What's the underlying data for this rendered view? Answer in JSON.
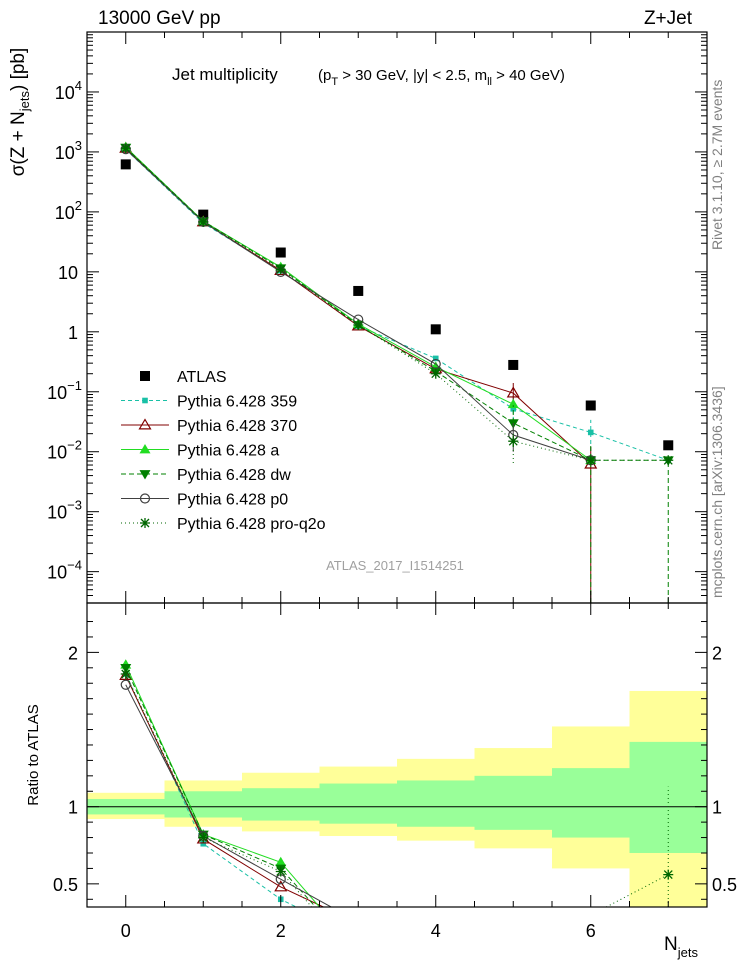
{
  "header": {
    "left": "13000 GeV pp",
    "right": "Z+Jet"
  },
  "side_labels": {
    "top": "Rivet 3.1.10, ≥ 2.7M events",
    "bottom": "mcplots.cern.ch [arXiv:1306.3436]"
  },
  "watermark": "ATLAS_2017_I1514251",
  "plot_title": {
    "main": "Jet multiplicity",
    "cuts_p": "(p",
    "cuts_T": "T",
    "cuts_mid": " > 30 GeV, |y| < 2.5, m",
    "cuts_ll": "ll",
    "cuts_end": " > 40 GeV)"
  },
  "colors": {
    "band_inner": "#99ff99",
    "band_outer": "#ffff99",
    "data": "#000000"
  },
  "chart_data": [
    {
      "type": "scatter",
      "panel": "main",
      "ylabel": {
        "main": "σ(Z + N",
        "sub": "jets",
        "end": ") [pb]"
      },
      "yscale": "log",
      "ylim": [
        3e-05,
        100000
      ],
      "xlim": [
        -0.5,
        7.5
      ],
      "x_ticks": [
        "0",
        "2",
        "4",
        "6"
      ],
      "y_ticks": [
        {
          "v": 0.0001,
          "base": "10",
          "exp": "−4"
        },
        {
          "v": 0.001,
          "base": "10",
          "exp": "−3"
        },
        {
          "v": 0.01,
          "base": "10",
          "exp": "−2"
        },
        {
          "v": 0.1,
          "base": "10",
          "exp": "−1"
        },
        {
          "v": 1,
          "base": "1",
          "exp": ""
        },
        {
          "v": 10,
          "base": "10",
          "exp": ""
        },
        {
          "v": 100,
          "base": "10",
          "exp": "2"
        },
        {
          "v": 1000,
          "base": "10",
          "exp": "3"
        },
        {
          "v": 10000,
          "base": "10",
          "exp": "4"
        }
      ],
      "legend_position": "lower-left",
      "series": [
        {
          "name": "ATLAS",
          "color": "#000000",
          "marker": "square",
          "dash": "none",
          "x": [
            0,
            1,
            2,
            3,
            4,
            5,
            6,
            7
          ],
          "y": [
            620,
            90,
            21,
            4.8,
            1.1,
            0.28,
            0.059,
            0.0128
          ]
        },
        {
          "name": "Pythia 6.428 359",
          "color": "#19c0a6",
          "marker": "smallsquare",
          "dash": "4,3",
          "x": [
            0,
            1,
            2,
            3,
            4,
            5,
            6,
            7
          ],
          "y": [
            1100,
            65,
            10.5,
            1.25,
            0.36,
            0.052,
            0.021,
            0.0072
          ],
          "err": [
            null,
            null,
            null,
            null,
            null,
            [
              0.025,
              0.09
            ],
            [
              0.006,
              0.034
            ],
            null
          ]
        },
        {
          "name": "Pythia 6.428 370",
          "color": "#800000",
          "marker": "triangle",
          "dash": "none",
          "x": [
            0,
            1,
            2,
            3,
            4,
            5,
            6
          ],
          "y": [
            1150,
            68,
            10.5,
            1.25,
            0.24,
            0.095,
            0.0062
          ],
          "err": [
            null,
            null,
            null,
            null,
            null,
            [
              0.06,
              0.14
            ],
            [
              3e-05,
              0.012
            ]
          ]
        },
        {
          "name": "Pythia 6.428 a",
          "color": "#22dd22",
          "marker": "triangle-filled",
          "dash": "none",
          "x": [
            0,
            1,
            2,
            3,
            4,
            5,
            6
          ],
          "y": [
            1200,
            70,
            12,
            1.35,
            0.26,
            0.062,
            0.0072
          ]
        },
        {
          "name": "Pythia 6.428 dw",
          "color": "#008000",
          "marker": "triangle-down",
          "dash": "5,3",
          "x": [
            0,
            1,
            2,
            3,
            4,
            5,
            6,
            7
          ],
          "y": [
            1180,
            70,
            11.5,
            1.3,
            0.22,
            0.03,
            0.0072,
            0.0072
          ],
          "err": [
            null,
            null,
            null,
            null,
            null,
            [
              0.012,
              0.06
            ],
            [
              3e-05,
              0.014
            ],
            [
              3e-05,
              0.0072
            ]
          ]
        },
        {
          "name": "Pythia 6.428 p0",
          "color": "#404040",
          "marker": "circle",
          "dash": "none",
          "x": [
            0,
            1,
            2,
            3,
            4,
            5,
            6
          ],
          "y": [
            1110,
            68,
            10,
            1.6,
            0.29,
            0.019,
            0.0072
          ],
          "err": [
            null,
            null,
            null,
            null,
            null,
            [
              0.01,
              0.03
            ],
            null
          ]
        },
        {
          "name": "Pythia 6.428 pro-q2o",
          "color": "#006600",
          "marker": "star",
          "dash": "1,3",
          "x": [
            0,
            1,
            2,
            3,
            4,
            5,
            6,
            7
          ],
          "y": [
            1150,
            68,
            11,
            1.3,
            0.2,
            0.015,
            0.0072,
            0.0072
          ],
          "err": [
            null,
            null,
            null,
            null,
            null,
            [
              0.0065,
              0.022
            ],
            null,
            null
          ]
        }
      ]
    },
    {
      "type": "line",
      "panel": "ratio",
      "xlabel": {
        "main": "N",
        "sub": "jets"
      },
      "ylabel": "Ratio to ATLAS",
      "yscale": "linear",
      "ylim": [
        0.35,
        2.32
      ],
      "xlim": [
        -0.5,
        7.5
      ],
      "x_ticks": [
        "0",
        "2",
        "4",
        "6"
      ],
      "y_ticks": [
        "0.5",
        "1",
        "2"
      ],
      "bands": {
        "edges": [
          -0.5,
          0.5,
          1.5,
          2.5,
          3.5,
          4.5,
          5.5,
          6.5,
          7.5
        ],
        "inner": [
          [
            0.95,
            1.05
          ],
          [
            0.93,
            1.1
          ],
          [
            0.91,
            1.12
          ],
          [
            0.89,
            1.15
          ],
          [
            0.87,
            1.17
          ],
          [
            0.85,
            1.2
          ],
          [
            0.8,
            1.25
          ],
          [
            0.7,
            1.42
          ]
        ],
        "outer": [
          [
            0.92,
            1.09
          ],
          [
            0.87,
            1.17
          ],
          [
            0.84,
            1.22
          ],
          [
            0.81,
            1.26
          ],
          [
            0.78,
            1.31
          ],
          [
            0.73,
            1.38
          ],
          [
            0.6,
            1.52
          ],
          [
            0.35,
            1.75
          ]
        ]
      },
      "series": [
        {
          "name": "Pythia 6.428 359",
          "color": "#19c0a6",
          "marker": "smallsquare",
          "dash": "4,3",
          "x": [
            0,
            1,
            2,
            2.2
          ],
          "y": [
            1.86,
            0.76,
            0.4,
            0.35
          ]
        },
        {
          "name": "Pythia 6.428 370",
          "color": "#800000",
          "marker": "triangle",
          "dash": "none",
          "x": [
            0,
            1,
            2,
            2.55
          ],
          "y": [
            1.85,
            0.79,
            0.48,
            0.35
          ]
        },
        {
          "name": "Pythia 6.428 a",
          "color": "#22dd22",
          "marker": "triangle-filled",
          "dash": "none",
          "x": [
            0,
            1,
            2,
            2.5
          ],
          "y": [
            1.92,
            0.82,
            0.64,
            0.35
          ]
        },
        {
          "name": "Pythia 6.428 dw",
          "color": "#008000",
          "marker": "triangle-down",
          "dash": "5,3",
          "x": [
            0,
            1,
            2,
            2.45
          ],
          "y": [
            1.9,
            0.82,
            0.6,
            0.35
          ]
        },
        {
          "name": "Pythia 6.428 p0",
          "color": "#404040",
          "marker": "circle",
          "dash": "none",
          "x": [
            0,
            1,
            2,
            2.65
          ],
          "y": [
            1.79,
            0.81,
            0.53,
            0.35
          ]
        },
        {
          "name": "Pythia 6.428 pro-q2o",
          "color": "#006600",
          "marker": "star",
          "dash": "1,3",
          "x": [
            0,
            1,
            2,
            2.4
          ],
          "y": [
            1.86,
            0.8,
            0.58,
            0.35
          ]
        },
        {
          "name": "Pythia 6.428 pro-q2o",
          "color": "#006600",
          "marker": "star",
          "dash": "1,3",
          "x": [
            6.2,
            7
          ],
          "y": [
            0.35,
            0.56
          ],
          "err": [
            null,
            [
              0.35,
              1.13
            ]
          ]
        }
      ]
    }
  ]
}
